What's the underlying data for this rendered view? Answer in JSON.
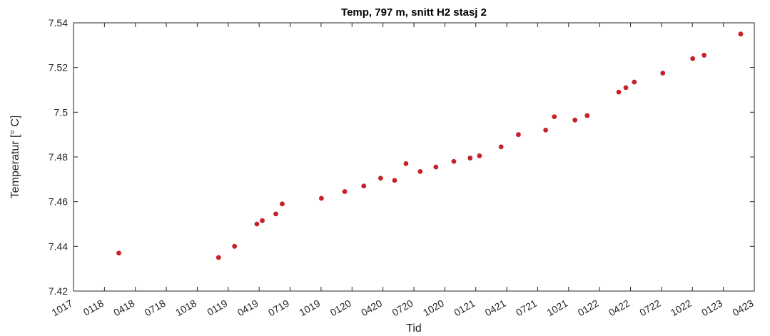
{
  "chart_data": {
    "type": "scatter",
    "title": "Temp, 797 m, snitt H2 stasj 2",
    "xlabel": "Tid",
    "ylabel": "Temperatur [° C]",
    "xlim": [
      "2017-10",
      "2023-04"
    ],
    "ylim": [
      7.42,
      7.54
    ],
    "x_ticks": [
      "1017",
      "0118",
      "0418",
      "0718",
      "1018",
      "0119",
      "0419",
      "0719",
      "1019",
      "0120",
      "0420",
      "0720",
      "1020",
      "0121",
      "0421",
      "0721",
      "1021",
      "0122",
      "0422",
      "0722",
      "1022",
      "0123",
      "0423"
    ],
    "y_ticks": [
      "7.42",
      "7.44",
      "7.46",
      "7.48",
      "7.5",
      "7.52",
      "7.54"
    ],
    "grid": true,
    "marker_color": "#c62128",
    "points": [
      {
        "x": "2018-02-12",
        "y": 7.437
      },
      {
        "x": "2018-12-03",
        "y": 7.435
      },
      {
        "x": "2019-01-20",
        "y": 7.44
      },
      {
        "x": "2019-03-25",
        "y": 7.45
      },
      {
        "x": "2019-04-10",
        "y": 7.4515
      },
      {
        "x": "2019-05-20",
        "y": 7.4545
      },
      {
        "x": "2019-06-08",
        "y": 7.459
      },
      {
        "x": "2019-10-02",
        "y": 7.4615
      },
      {
        "x": "2019-12-10",
        "y": 7.4645
      },
      {
        "x": "2020-02-05",
        "y": 7.467
      },
      {
        "x": "2020-03-25",
        "y": 7.4705
      },
      {
        "x": "2020-05-05",
        "y": 7.4695
      },
      {
        "x": "2020-06-08",
        "y": 7.477
      },
      {
        "x": "2020-07-20",
        "y": 7.4735
      },
      {
        "x": "2020-09-05",
        "y": 7.4755
      },
      {
        "x": "2020-10-28",
        "y": 7.478
      },
      {
        "x": "2020-12-15",
        "y": 7.4795
      },
      {
        "x": "2021-01-12",
        "y": 7.4805
      },
      {
        "x": "2021-03-15",
        "y": 7.4845
      },
      {
        "x": "2021-05-05",
        "y": 7.49
      },
      {
        "x": "2021-07-25",
        "y": 7.492
      },
      {
        "x": "2021-08-20",
        "y": 7.498
      },
      {
        "x": "2021-10-20",
        "y": 7.4965
      },
      {
        "x": "2021-11-25",
        "y": 7.4985
      },
      {
        "x": "2022-02-25",
        "y": 7.509
      },
      {
        "x": "2022-03-18",
        "y": 7.511
      },
      {
        "x": "2022-04-12",
        "y": 7.5135
      },
      {
        "x": "2022-07-05",
        "y": 7.5175
      },
      {
        "x": "2022-10-02",
        "y": 7.524
      },
      {
        "x": "2022-11-05",
        "y": 7.5255
      },
      {
        "x": "2023-02-20",
        "y": 7.535
      }
    ]
  }
}
